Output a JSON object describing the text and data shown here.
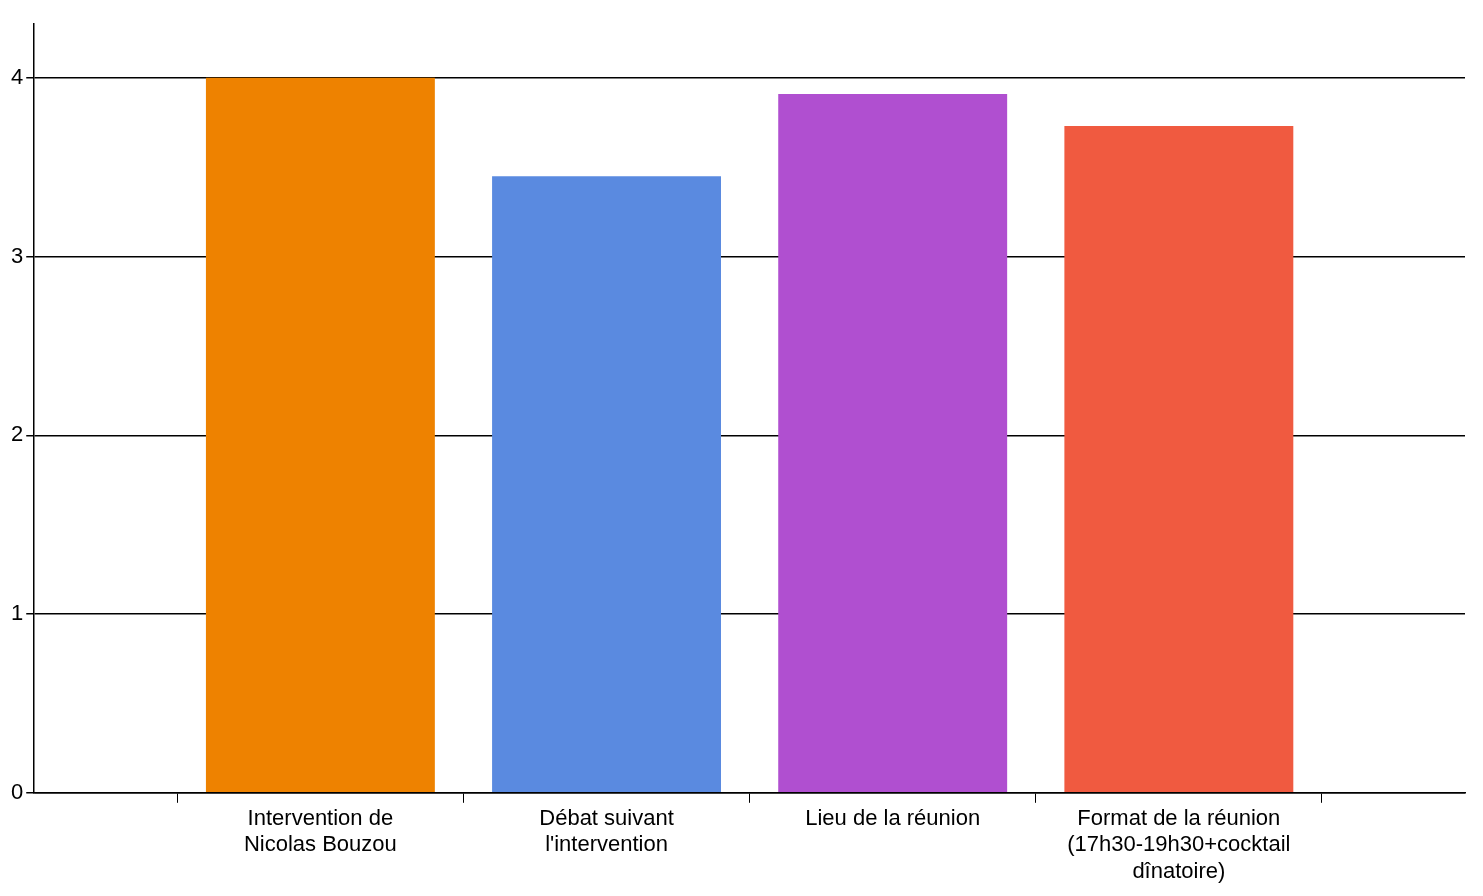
{
  "chart_data": {
    "type": "bar",
    "categories": [
      "Intervention de Nicolas Bouzou",
      "Débat suivant l'intervention",
      "Lieu de la réunion",
      "Format de la réunion (17h30-19h30+cocktail dînatoire)"
    ],
    "values": [
      4.0,
      3.45,
      3.91,
      3.73
    ],
    "colors": [
      "#ee8200",
      "#5a8ae0",
      "#b04fd0",
      "#f05a40"
    ],
    "ylim": [
      0,
      4.3
    ],
    "yticks": [
      0,
      1,
      2,
      3,
      4
    ],
    "grid": "y",
    "legend": false
  }
}
